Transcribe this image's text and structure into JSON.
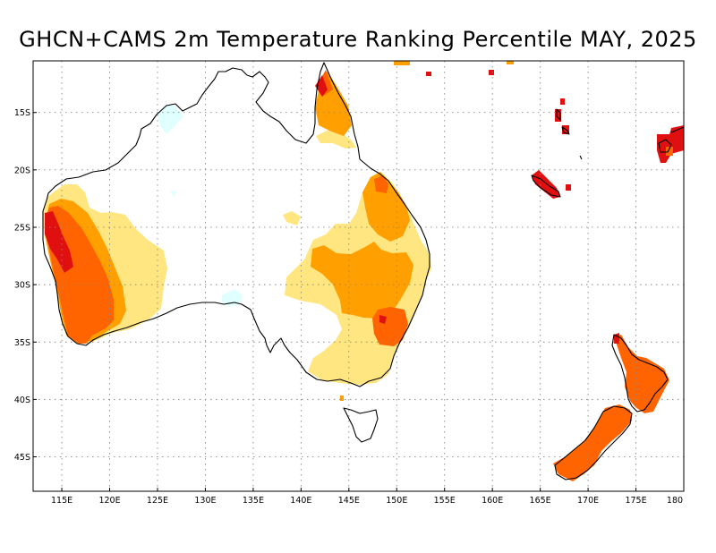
{
  "title": "GHCN+CAMS 2m Temperature Ranking Percentile MAY, 2025",
  "map": {
    "type": "choropleth-map",
    "projection": "lat-lon",
    "lon_range": [
      112,
      180
    ],
    "lat_range": [
      -48,
      -10.5
    ],
    "grid": true,
    "x_ticks": [
      "115E",
      "120E",
      "125E",
      "130E",
      "135E",
      "140E",
      "145E",
      "150E",
      "155E",
      "160E",
      "165E",
      "170E",
      "175E",
      "180"
    ],
    "x_tick_values": [
      115,
      120,
      125,
      130,
      135,
      140,
      145,
      150,
      155,
      160,
      165,
      170,
      175,
      180
    ],
    "y_ticks": [
      "15S",
      "20S",
      "25S",
      "30S",
      "35S",
      "40S",
      "45S"
    ],
    "y_tick_values": [
      -15,
      -20,
      -25,
      -30,
      -35,
      -40,
      -45
    ],
    "colors": {
      "very_cold": "#a0e6ff",
      "cold": "#e0ffff",
      "warm": "#ffe680",
      "warmer": "#ffa000",
      "much_warmer": "#ff6400",
      "hottest": "#e01010",
      "coastline": "#000000"
    }
  }
}
